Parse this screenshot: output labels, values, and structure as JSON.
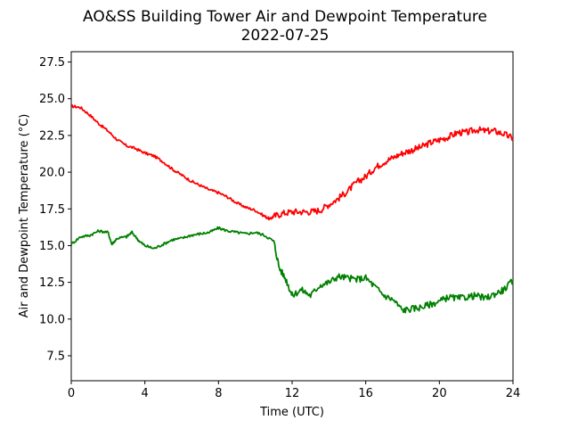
{
  "chart_data": {
    "type": "line",
    "title": "AO&SS Building Tower Air and Dewpoint Temperature",
    "subtitle": "2022-07-25",
    "xlabel": "Time (UTC)",
    "ylabel": "Air and Dewpoint Temperature (°C)",
    "xlim": [
      0,
      24
    ],
    "ylim": [
      5.8,
      28.2
    ],
    "xticks": [
      0,
      4,
      8,
      12,
      16,
      20,
      24
    ],
    "yticks": [
      "7.5",
      "10.0",
      "12.5",
      "15.0",
      "17.5",
      "20.0",
      "22.5",
      "25.0",
      "27.5"
    ],
    "grid": false,
    "series": [
      {
        "color": "#ff0000",
        "x": [
          0,
          0.5,
          1,
          1.5,
          2,
          2.5,
          3,
          3.5,
          4,
          4.5,
          5,
          5.5,
          6,
          6.5,
          7,
          7.5,
          8,
          8.5,
          9,
          9.5,
          10,
          10.5,
          10.8,
          11,
          11.5,
          12,
          12.5,
          13,
          13.5,
          14,
          14.5,
          15,
          15.5,
          16,
          16.5,
          17,
          17.5,
          18,
          18.5,
          19,
          19.5,
          20,
          20.5,
          21,
          21.5,
          22,
          22.5,
          23,
          23.5,
          24
        ],
        "y": [
          24.5,
          24.4,
          23.9,
          23.3,
          22.8,
          22.2,
          21.8,
          21.6,
          21.3,
          21.1,
          20.7,
          20.2,
          19.8,
          19.4,
          19.1,
          18.8,
          18.6,
          18.3,
          17.9,
          17.6,
          17.4,
          17.0,
          16.8,
          17.0,
          17.2,
          17.3,
          17.3,
          17.3,
          17.4,
          17.8,
          18.2,
          18.7,
          19.3,
          19.7,
          20.3,
          20.7,
          21.0,
          21.3,
          21.5,
          21.7,
          22.0,
          22.2,
          22.4,
          22.7,
          22.7,
          22.9,
          22.8,
          22.8,
          22.6,
          22.3
        ]
      },
      {
        "color": "#008000",
        "x": [
          0,
          0.5,
          1,
          1.5,
          2,
          2.2,
          2.5,
          3,
          3.3,
          3.7,
          4,
          4.5,
          5,
          5.5,
          6,
          6.5,
          7,
          7.5,
          8,
          8.5,
          9,
          9.5,
          10,
          10.5,
          11,
          11.3,
          11.7,
          12,
          12.5,
          13,
          13.5,
          14,
          14.5,
          15,
          15.5,
          16,
          16.5,
          17,
          17.5,
          18,
          18.5,
          19,
          19.5,
          20,
          20.5,
          21,
          21.5,
          22,
          22.5,
          23,
          23.5,
          24
        ],
        "y": [
          15.1,
          15.6,
          15.7,
          16.0,
          15.9,
          15.1,
          15.5,
          15.6,
          15.9,
          15.3,
          15.0,
          14.8,
          15.1,
          15.4,
          15.5,
          15.7,
          15.8,
          15.9,
          16.2,
          16.0,
          15.9,
          15.8,
          15.9,
          15.7,
          15.3,
          13.5,
          12.6,
          11.6,
          12.0,
          11.6,
          12.3,
          12.5,
          12.9,
          12.8,
          12.7,
          12.8,
          12.2,
          11.6,
          11.3,
          10.6,
          10.7,
          10.8,
          11.0,
          11.2,
          11.5,
          11.4,
          11.5,
          11.6,
          11.4,
          11.7,
          12.0,
          12.6
        ]
      }
    ]
  }
}
